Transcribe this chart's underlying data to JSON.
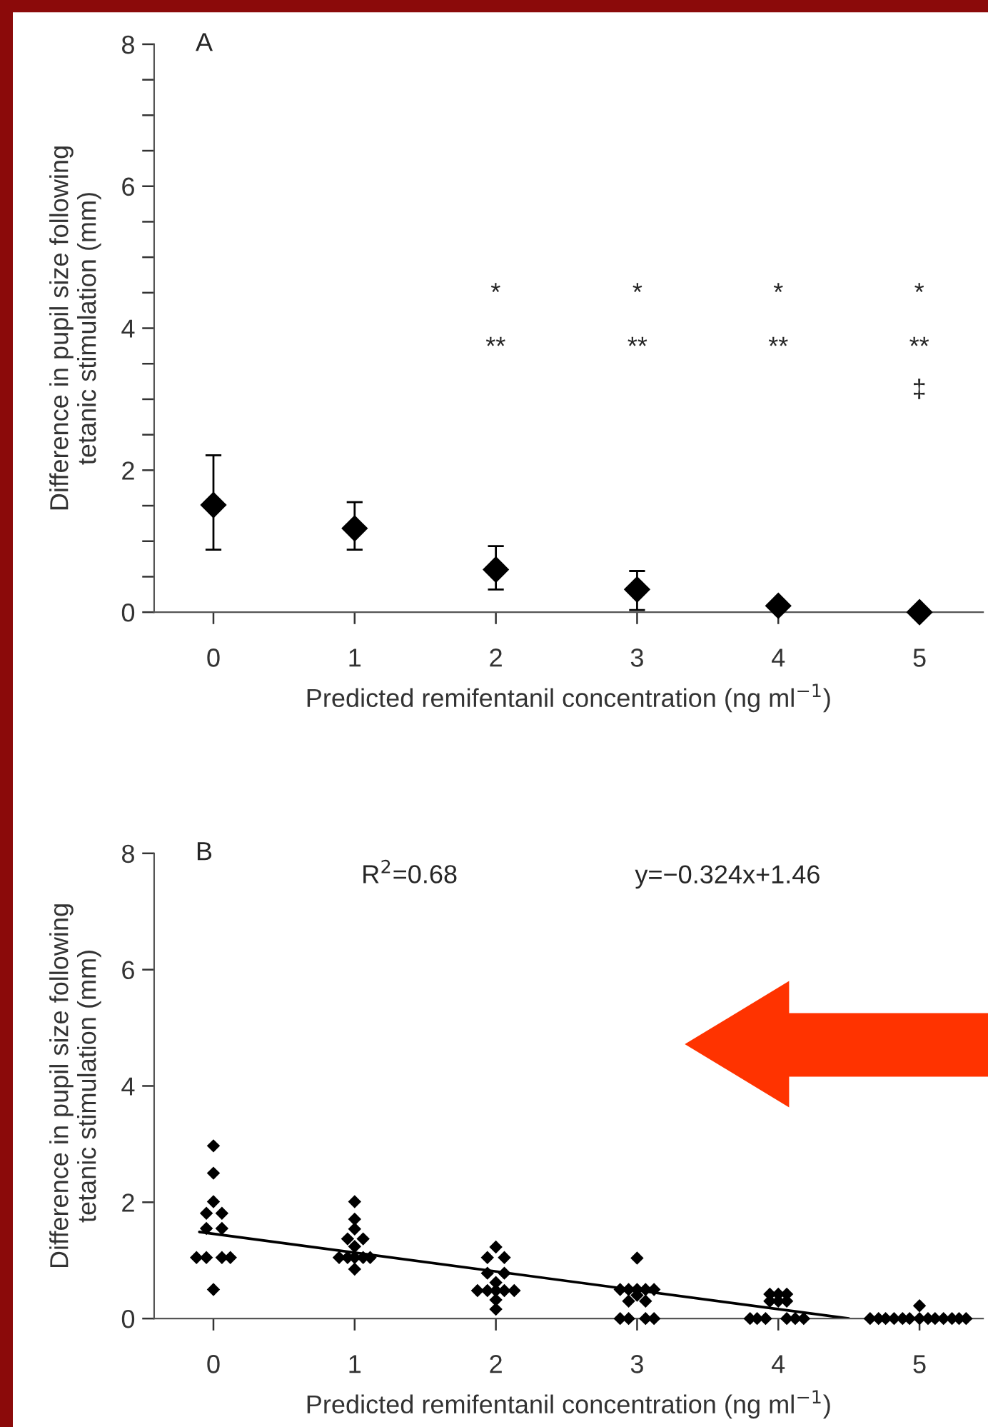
{
  "chart_data": [
    {
      "type": "scatter",
      "title": "A",
      "xlabel": "Predicted remifentanil concentration (ng ml$^{−1}$)",
      "ylabel": "Difference in pupil size following\ntetanic stimulation (mm)",
      "xlim": [
        -0.42,
        5.45
      ],
      "xticks": [
        0,
        1,
        2,
        3,
        4,
        5
      ],
      "ylim": [
        0,
        8
      ],
      "yticks": [
        0,
        {
          "value": 0.5,
          "label": null
        },
        {
          "value": 1,
          "label": null
        },
        {
          "value": 1.5,
          "label": null
        },
        2,
        {
          "value": 2.5,
          "label": null
        },
        {
          "value": 3,
          "label": null
        },
        {
          "value": 3.5,
          "label": null
        },
        4,
        {
          "value": 4.5,
          "label": null
        },
        {
          "value": 5,
          "label": null
        },
        {
          "value": 5.5,
          "label": null
        },
        6,
        {
          "value": 6.5,
          "label": null
        },
        {
          "value": 7,
          "label": null
        },
        {
          "value": 7.5,
          "label": null
        },
        8
      ],
      "marker": "diamond",
      "grid": false,
      "series": [
        {
          "color": "#000000",
          "x": [
            0,
            1,
            2,
            3,
            4,
            5
          ],
          "values": [
            1.51,
            1.18,
            0.6,
            0.32,
            0.09,
            0.0
          ],
          "errors": [
            [
              0.88,
              2.21
            ],
            [
              0.88,
              1.55
            ],
            [
              0.32,
              0.93
            ],
            [
              0.03,
              0.58
            ],
            null,
            null
          ]
        }
      ],
      "annotations": [
        "*",
        "*",
        "*",
        "*",
        "**",
        "**",
        "**",
        "**",
        "‡"
      ]
    },
    {
      "type": "scatter",
      "title": "B",
      "xlabel": "Predicted remifentanil concentration (ng ml$^{−1}$)",
      "ylabel": "Difference in pupil size following\ntetanic stimulation (mm)",
      "xlim": [
        -0.42,
        5.45
      ],
      "xticks": [
        0,
        1,
        2,
        3,
        4,
        5
      ],
      "ylim": [
        0,
        8
      ],
      "yticks": [
        0,
        2,
        4,
        6,
        8
      ],
      "marker": "diamond",
      "grid": false,
      "series": [
        {
          "color": "#000000",
          "x": [
            0,
            0,
            0,
            -0.05,
            0.06,
            -0.05,
            0.06,
            -0.12,
            -0.05,
            0.06,
            0.12,
            0,
            1,
            1,
            1,
            0.95,
            1.06,
            1,
            0.89,
            0.95,
            1,
            1.06,
            1.11,
            1,
            2,
            1.94,
            2.06,
            1.94,
            2.06,
            2,
            1.87,
            1.94,
            2,
            2.06,
            2.13,
            2,
            2,
            3,
            2.88,
            2.94,
            3,
            3.06,
            3.12,
            2.94,
            3.06,
            3,
            2.88,
            2.94,
            3.06,
            3.12,
            3.94,
            4,
            4.06,
            3.94,
            4,
            4.06,
            3.8,
            3.85,
            3.91,
            4.06,
            4.12,
            4.18,
            5,
            4.65,
            4.71,
            4.76,
            4.82,
            4.88,
            4.93,
            5,
            5.06,
            5.11,
            5.17,
            5.23,
            5.28,
            5.33
          ],
          "values": [
            2.97,
            2.5,
            2.01,
            1.81,
            1.81,
            1.55,
            1.55,
            1.05,
            1.05,
            1.05,
            1.05,
            0.5,
            2.01,
            1.71,
            1.54,
            1.37,
            1.37,
            1.24,
            1.05,
            1.05,
            1.05,
            1.05,
            1.05,
            0.85,
            1.23,
            1.05,
            1.05,
            0.78,
            0.78,
            0.62,
            0.48,
            0.48,
            0.48,
            0.48,
            0.48,
            0.32,
            0.16,
            1.04,
            0.5,
            0.5,
            0.5,
            0.5,
            0.5,
            0.3,
            0.3,
            0.4,
            0,
            0,
            0,
            0,
            0.42,
            0.42,
            0.42,
            0.3,
            0.3,
            0.3,
            0,
            0,
            0,
            0,
            0,
            0,
            0.22,
            0,
            0,
            0,
            0,
            0,
            0,
            0,
            0,
            0,
            0,
            0,
            0,
            0
          ]
        },
        {
          "type": "line",
          "color": "#000000",
          "marker": "none",
          "line_style": "solid",
          "x": [
            -0.1,
            4.5
          ],
          "values": [
            1.49,
            0.0
          ]
        }
      ],
      "annotations": [
        "R$^{2}$=0.68",
        "y=−0.324x+1.46"
      ]
    }
  ]
}
